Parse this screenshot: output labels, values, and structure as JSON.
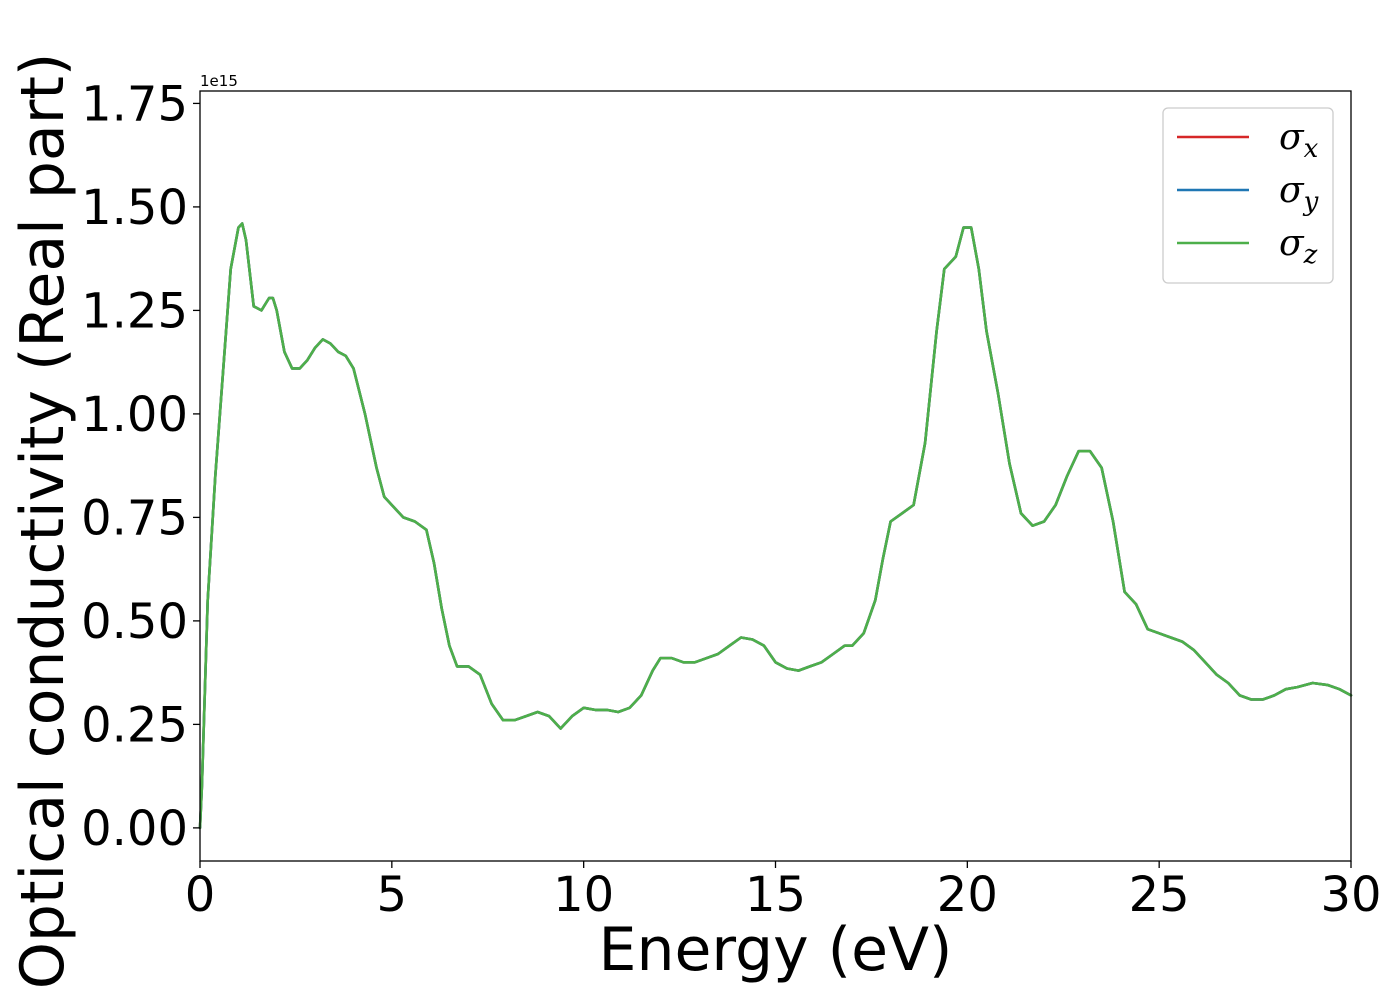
{
  "chart_data": {
    "type": "line",
    "xlabel": "Energy (eV)",
    "ylabel": "Optical conductivity (Real part)",
    "y_offset_label": "1e15",
    "xlim": [
      0,
      30
    ],
    "ylim": [
      -0.08,
      1.78
    ],
    "x_ticks": [
      0,
      5,
      10,
      15,
      20,
      25,
      30
    ],
    "x_tick_labels": [
      "0",
      "5",
      "10",
      "15",
      "20",
      "25",
      "30"
    ],
    "y_ticks": [
      0.0,
      0.25,
      0.5,
      0.75,
      1.0,
      1.25,
      1.5,
      1.75
    ],
    "y_tick_labels": [
      "0.00",
      "0.25",
      "0.50",
      "0.75",
      "1.00",
      "1.25",
      "1.50",
      "1.75"
    ],
    "grid": false,
    "legend_position": "top-right",
    "x": [
      0,
      0.05,
      0.2,
      0.4,
      0.6,
      0.8,
      1.0,
      1.1,
      1.2,
      1.4,
      1.6,
      1.8,
      1.9,
      2.0,
      2.2,
      2.4,
      2.6,
      2.8,
      3.0,
      3.2,
      3.4,
      3.6,
      3.8,
      4.0,
      4.3,
      4.6,
      4.8,
      5.0,
      5.3,
      5.6,
      5.9,
      6.1,
      6.3,
      6.5,
      6.7,
      7.0,
      7.3,
      7.6,
      7.9,
      8.2,
      8.5,
      8.8,
      9.1,
      9.4,
      9.7,
      10.0,
      10.3,
      10.6,
      10.9,
      11.2,
      11.5,
      11.8,
      12.0,
      12.3,
      12.6,
      12.9,
      13.2,
      13.5,
      13.8,
      14.1,
      14.4,
      14.7,
      15.0,
      15.3,
      15.6,
      15.9,
      16.2,
      16.5,
      16.8,
      17.0,
      17.3,
      17.6,
      17.8,
      18.0,
      18.3,
      18.6,
      18.9,
      19.2,
      19.4,
      19.6,
      19.7,
      19.9,
      20.1,
      20.3,
      20.5,
      20.8,
      21.1,
      21.4,
      21.7,
      22.0,
      22.3,
      22.6,
      22.9,
      23.2,
      23.5,
      23.8,
      24.1,
      24.4,
      24.7,
      25.0,
      25.3,
      25.6,
      25.9,
      26.2,
      26.5,
      26.8,
      27.1,
      27.4,
      27.7,
      28.0,
      28.3,
      28.6,
      29.0,
      29.4,
      29.7,
      30.0
    ],
    "series": [
      {
        "name": "σx",
        "label_base": "σ",
        "label_sub": "x",
        "color": "#d62728",
        "values": [
          0.0,
          0.1,
          0.55,
          0.85,
          1.1,
          1.35,
          1.45,
          1.46,
          1.42,
          1.26,
          1.25,
          1.28,
          1.28,
          1.25,
          1.15,
          1.11,
          1.11,
          1.13,
          1.16,
          1.18,
          1.17,
          1.15,
          1.14,
          1.11,
          1.0,
          0.87,
          0.8,
          0.78,
          0.75,
          0.74,
          0.72,
          0.64,
          0.53,
          0.44,
          0.39,
          0.39,
          0.37,
          0.3,
          0.26,
          0.26,
          0.27,
          0.28,
          0.27,
          0.24,
          0.27,
          0.29,
          0.285,
          0.285,
          0.28,
          0.29,
          0.32,
          0.38,
          0.41,
          0.41,
          0.4,
          0.4,
          0.41,
          0.42,
          0.44,
          0.46,
          0.455,
          0.44,
          0.4,
          0.385,
          0.38,
          0.39,
          0.4,
          0.42,
          0.44,
          0.44,
          0.47,
          0.55,
          0.65,
          0.74,
          0.76,
          0.78,
          0.93,
          1.2,
          1.35,
          1.37,
          1.38,
          1.45,
          1.45,
          1.35,
          1.2,
          1.05,
          0.88,
          0.76,
          0.73,
          0.74,
          0.78,
          0.85,
          0.91,
          0.91,
          0.87,
          0.74,
          0.57,
          0.54,
          0.48,
          0.47,
          0.46,
          0.45,
          0.43,
          0.4,
          0.37,
          0.35,
          0.32,
          0.31,
          0.31,
          0.32,
          0.335,
          0.34,
          0.35,
          0.345,
          0.335,
          0.32
        ]
      },
      {
        "name": "σy",
        "label_base": "σ",
        "label_sub": "y",
        "color": "#1f77b4",
        "values": [
          0.0,
          0.1,
          0.55,
          0.85,
          1.1,
          1.35,
          1.45,
          1.46,
          1.42,
          1.26,
          1.25,
          1.28,
          1.28,
          1.25,
          1.15,
          1.11,
          1.11,
          1.13,
          1.16,
          1.18,
          1.17,
          1.15,
          1.14,
          1.11,
          1.0,
          0.87,
          0.8,
          0.78,
          0.75,
          0.74,
          0.72,
          0.64,
          0.53,
          0.44,
          0.39,
          0.39,
          0.37,
          0.3,
          0.26,
          0.26,
          0.27,
          0.28,
          0.27,
          0.24,
          0.27,
          0.29,
          0.285,
          0.285,
          0.28,
          0.29,
          0.32,
          0.38,
          0.41,
          0.41,
          0.4,
          0.4,
          0.41,
          0.42,
          0.44,
          0.46,
          0.455,
          0.44,
          0.4,
          0.385,
          0.38,
          0.39,
          0.4,
          0.42,
          0.44,
          0.44,
          0.47,
          0.55,
          0.65,
          0.74,
          0.76,
          0.78,
          0.93,
          1.2,
          1.35,
          1.37,
          1.38,
          1.45,
          1.45,
          1.35,
          1.2,
          1.05,
          0.88,
          0.76,
          0.73,
          0.74,
          0.78,
          0.85,
          0.91,
          0.91,
          0.87,
          0.74,
          0.57,
          0.54,
          0.48,
          0.47,
          0.46,
          0.45,
          0.43,
          0.4,
          0.37,
          0.35,
          0.32,
          0.31,
          0.31,
          0.32,
          0.335,
          0.34,
          0.35,
          0.345,
          0.335,
          0.32
        ]
      },
      {
        "name": "σz",
        "label_base": "σ",
        "label_sub": "z",
        "color": "#4daf4a",
        "values": [
          0.0,
          0.1,
          0.55,
          0.85,
          1.1,
          1.35,
          1.45,
          1.46,
          1.42,
          1.26,
          1.25,
          1.28,
          1.28,
          1.25,
          1.15,
          1.11,
          1.11,
          1.13,
          1.16,
          1.18,
          1.17,
          1.15,
          1.14,
          1.11,
          1.0,
          0.87,
          0.8,
          0.78,
          0.75,
          0.74,
          0.72,
          0.64,
          0.53,
          0.44,
          0.39,
          0.39,
          0.37,
          0.3,
          0.26,
          0.26,
          0.27,
          0.28,
          0.27,
          0.24,
          0.27,
          0.29,
          0.285,
          0.285,
          0.28,
          0.29,
          0.32,
          0.38,
          0.41,
          0.41,
          0.4,
          0.4,
          0.41,
          0.42,
          0.44,
          0.46,
          0.455,
          0.44,
          0.4,
          0.385,
          0.38,
          0.39,
          0.4,
          0.42,
          0.44,
          0.44,
          0.47,
          0.55,
          0.65,
          0.74,
          0.76,
          0.78,
          0.93,
          1.2,
          1.35,
          1.37,
          1.38,
          1.45,
          1.45,
          1.35,
          1.2,
          1.05,
          0.88,
          0.76,
          0.73,
          0.74,
          0.78,
          0.85,
          0.91,
          0.91,
          0.87,
          0.74,
          0.57,
          0.54,
          0.48,
          0.47,
          0.46,
          0.45,
          0.43,
          0.4,
          0.37,
          0.35,
          0.32,
          0.31,
          0.31,
          0.32,
          0.335,
          0.34,
          0.35,
          0.345,
          0.335,
          0.32
        ]
      }
    ]
  }
}
